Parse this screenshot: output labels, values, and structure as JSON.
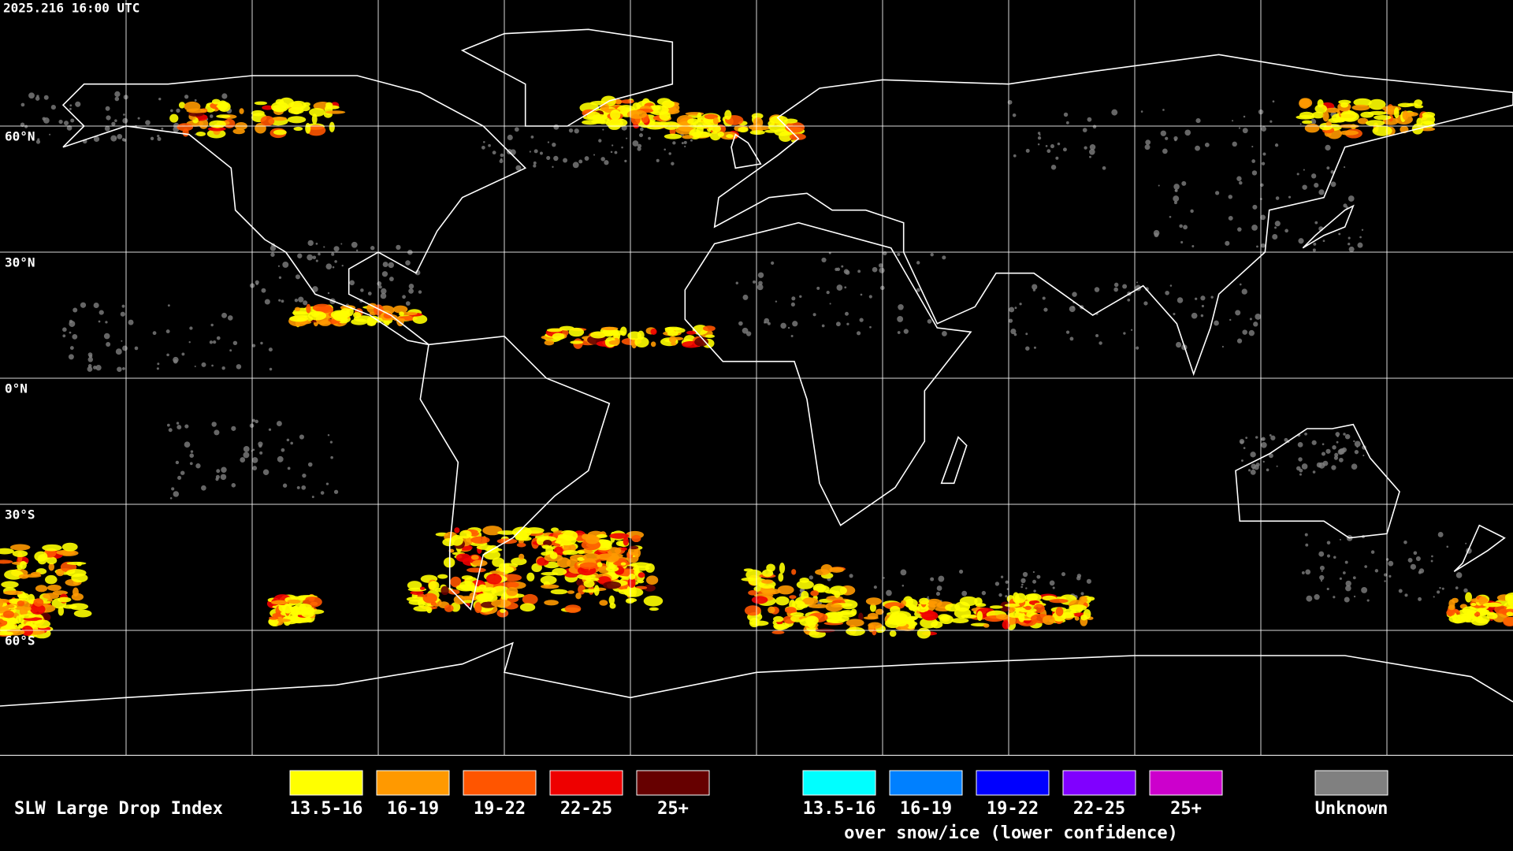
{
  "header": {
    "timestamp": "2025.216 16:00 UTC"
  },
  "map": {
    "latitude_labels": [
      "60°N",
      "30°N",
      "0°N",
      "30°S",
      "60°S"
    ]
  },
  "legend": {
    "title": "SLW Large Drop Index",
    "groups": [
      {
        "items": [
          {
            "label": "13.5-16",
            "color": "#ffff00"
          },
          {
            "label": "16-19",
            "color": "#ff9900"
          },
          {
            "label": "19-22",
            "color": "#ff5500"
          },
          {
            "label": "22-25",
            "color": "#ee0000"
          },
          {
            "label": "25+",
            "color": "#660000"
          }
        ]
      },
      {
        "items": [
          {
            "label": "13.5-16",
            "color": "#00ffff"
          },
          {
            "label": "16-19",
            "color": "#0080ff"
          },
          {
            "label": "19-22",
            "color": "#0000ff"
          },
          {
            "label": "22-25",
            "color": "#8000ff"
          },
          {
            "label": "25+",
            "color": "#cc00cc"
          }
        ],
        "caption": "over snow/ice (lower confidence)"
      },
      {
        "items": [
          {
            "label": "Unknown",
            "color": "#808080"
          }
        ]
      }
    ]
  }
}
